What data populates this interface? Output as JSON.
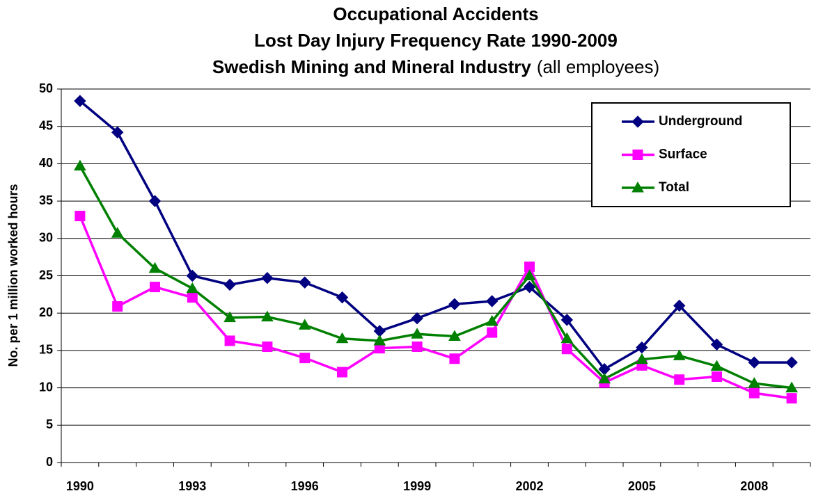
{
  "chart_data": {
    "type": "line",
    "title": [
      "Occupational Accidents",
      "Lost Day Injury Frequency Rate 1990-2009",
      "Swedish Mining and Mineral Industry"
    ],
    "subtitle": "(all employees)",
    "y_label": "No. per 1 million worked hours",
    "categories": [
      "1990",
      null,
      null,
      "1993",
      null,
      null,
      "1996",
      null,
      null,
      "1999",
      null,
      null,
      "2002",
      null,
      null,
      "2005",
      null,
      null,
      "2008",
      null
    ],
    "series": [
      {
        "name": "Underground",
        "color": "#000080",
        "marker": "diamond",
        "values": [
          48.4,
          44.2,
          35.0,
          25.0,
          23.8,
          24.7,
          24.1,
          22.1,
          17.6,
          19.3,
          21.2,
          21.6,
          23.5,
          19.1,
          12.5,
          15.4,
          21.0,
          15.8,
          13.4,
          13.4
        ]
      },
      {
        "name": "Surface",
        "color": "#ff00ff",
        "marker": "square",
        "values": [
          33.0,
          20.9,
          23.5,
          22.1,
          16.3,
          15.5,
          14.0,
          12.1,
          15.3,
          15.5,
          13.9,
          17.4,
          26.2,
          15.2,
          10.7,
          13.0,
          11.1,
          11.5,
          9.3,
          8.6
        ]
      },
      {
        "name": "Total",
        "color": "#008000",
        "marker": "triangle",
        "values": [
          39.7,
          30.7,
          26.0,
          23.3,
          19.4,
          19.5,
          18.4,
          16.6,
          16.3,
          17.2,
          16.9,
          18.9,
          25.0,
          16.6,
          11.2,
          13.8,
          14.3,
          12.9,
          10.6,
          10.0
        ]
      }
    ],
    "ylim": [
      0,
      50
    ],
    "yticks": [
      0,
      5,
      10,
      15,
      20,
      25,
      30,
      35,
      40,
      45,
      50
    ],
    "grid": true,
    "legend": "upper right"
  }
}
